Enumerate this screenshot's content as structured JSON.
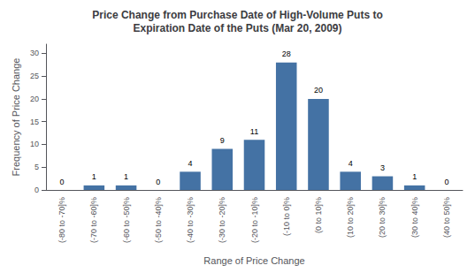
{
  "chart_data": {
    "type": "bar",
    "title": "Price Change from Purchase Date of High-Volume Puts to\nExpiration Date of the Puts (Mar 20, 2009)",
    "xlabel": "Range of Price Change",
    "ylabel": "Frequency of Price Change",
    "categories": [
      "(-80 to -70]%",
      "(-70 to -60]%",
      "(-60 to -50]%",
      "(-50 to -40]%",
      "(-40 to -30]%",
      "(-30 to -20]%",
      "(-20 to -10]%",
      "(-10 to 0]%",
      "(0 to 10]%",
      "(10 to 20]%",
      "(20 to 30]%",
      "(30 to 40]%",
      "(40 to 50]%"
    ],
    "values": [
      0,
      1,
      1,
      0,
      4,
      9,
      11,
      28,
      20,
      4,
      3,
      1,
      0
    ],
    "color": "#4472a4",
    "ylim": [
      0,
      32
    ],
    "yticks": [
      0,
      5,
      10,
      15,
      20,
      25,
      30
    ],
    "data_labels": true,
    "grid": false
  }
}
